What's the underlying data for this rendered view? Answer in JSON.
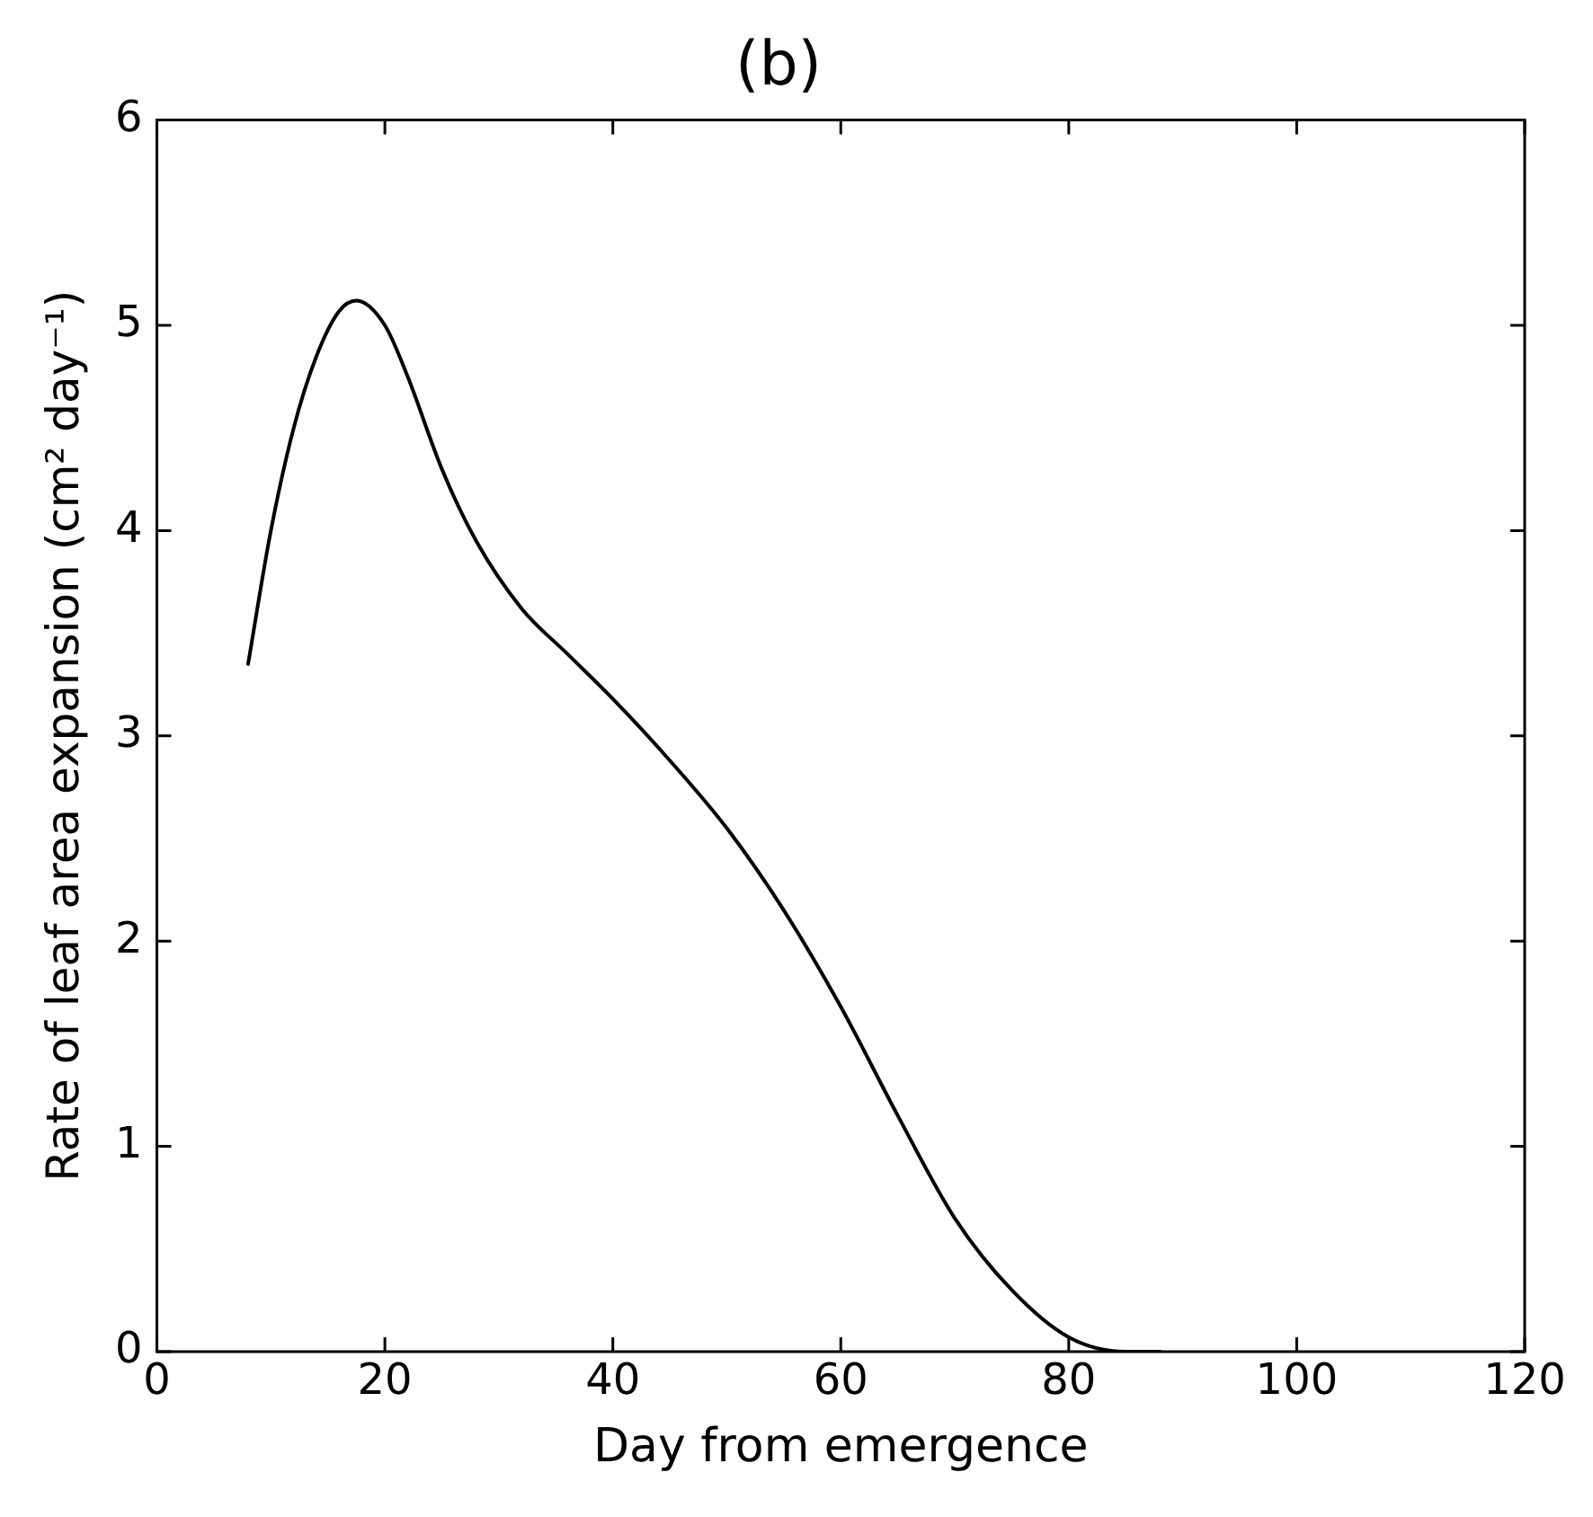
{
  "chart_data": {
    "type": "line",
    "title": "(b)",
    "xlabel": "Day from emergence",
    "ylabel": "Rate of leaf area expansion (cm² day⁻¹)",
    "x": [
      8,
      10,
      12,
      14,
      16,
      17.5,
      20,
      22,
      25,
      28,
      32,
      36,
      40,
      45,
      50,
      55,
      60,
      65,
      70,
      75,
      80,
      85,
      88
    ],
    "series": [
      {
        "color": "#000000",
        "values": [
          3.35,
          4.0,
          4.5,
          4.85,
          5.07,
          5.12,
          5.0,
          4.75,
          4.3,
          3.95,
          3.62,
          3.4,
          3.18,
          2.88,
          2.55,
          2.15,
          1.68,
          1.15,
          0.65,
          0.3,
          0.07,
          0.0,
          0.0
        ]
      }
    ],
    "xlim": [
      0,
      120
    ],
    "xticks": [
      0,
      20,
      40,
      60,
      80,
      100,
      120
    ],
    "ylim": [
      0,
      6
    ],
    "yticks": [
      0,
      1,
      2,
      3,
      4,
      5,
      6
    ],
    "grid": false,
    "legend": false,
    "marker": "none",
    "line_style": "solid"
  }
}
